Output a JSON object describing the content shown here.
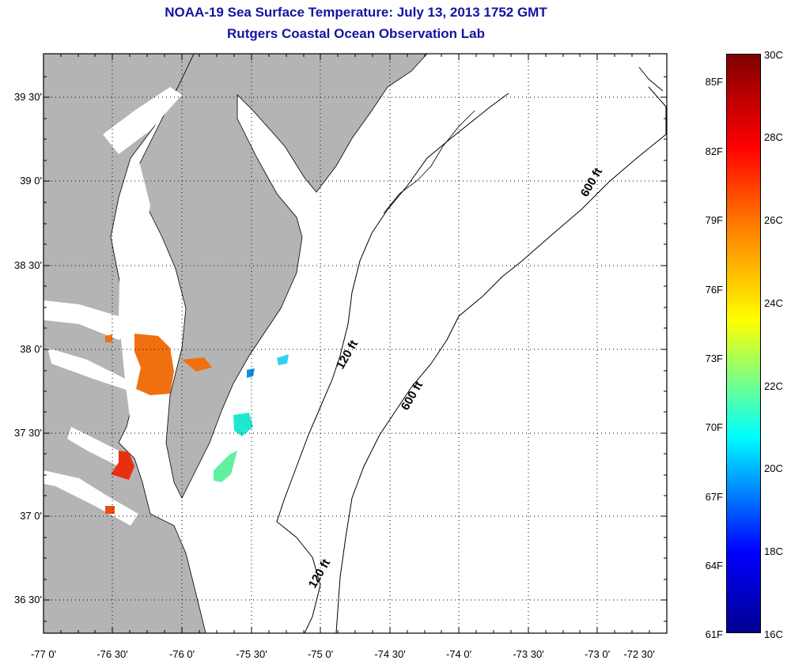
{
  "title_line1": "NOAA-19 Sea Surface Temperature:  July 13, 2013 1752 GMT",
  "title_line2": "Rutgers Coastal Ocean Observation Lab",
  "map": {
    "lat_labels": [
      "39 30'",
      "39 0'",
      "38 30'",
      "38 0'",
      "37 30'",
      "37 0'",
      "36 30'"
    ],
    "lon_labels": [
      "-77 0'",
      "-76 30'",
      "-76 0'",
      "-75 30'",
      "-75 0'",
      "-74 30'",
      "-74 0'",
      "-73 30'",
      "-73 0'",
      "-72 30'"
    ],
    "contour_labels": [
      "120 ft",
      "600 ft",
      "600 ft",
      "120 ft"
    ],
    "land_color": "#b4b4b4",
    "no_data_color": "#ffffff"
  },
  "colorbar": {
    "fahrenheit_labels": [
      "85F",
      "82F",
      "79F",
      "76F",
      "73F",
      "70F",
      "67F",
      "64F",
      "61F"
    ],
    "celsius_labels": [
      "30C",
      "28C",
      "26C",
      "24C",
      "22C",
      "20C",
      "18C",
      "16C"
    ],
    "range_celsius": [
      16,
      30
    ]
  }
}
